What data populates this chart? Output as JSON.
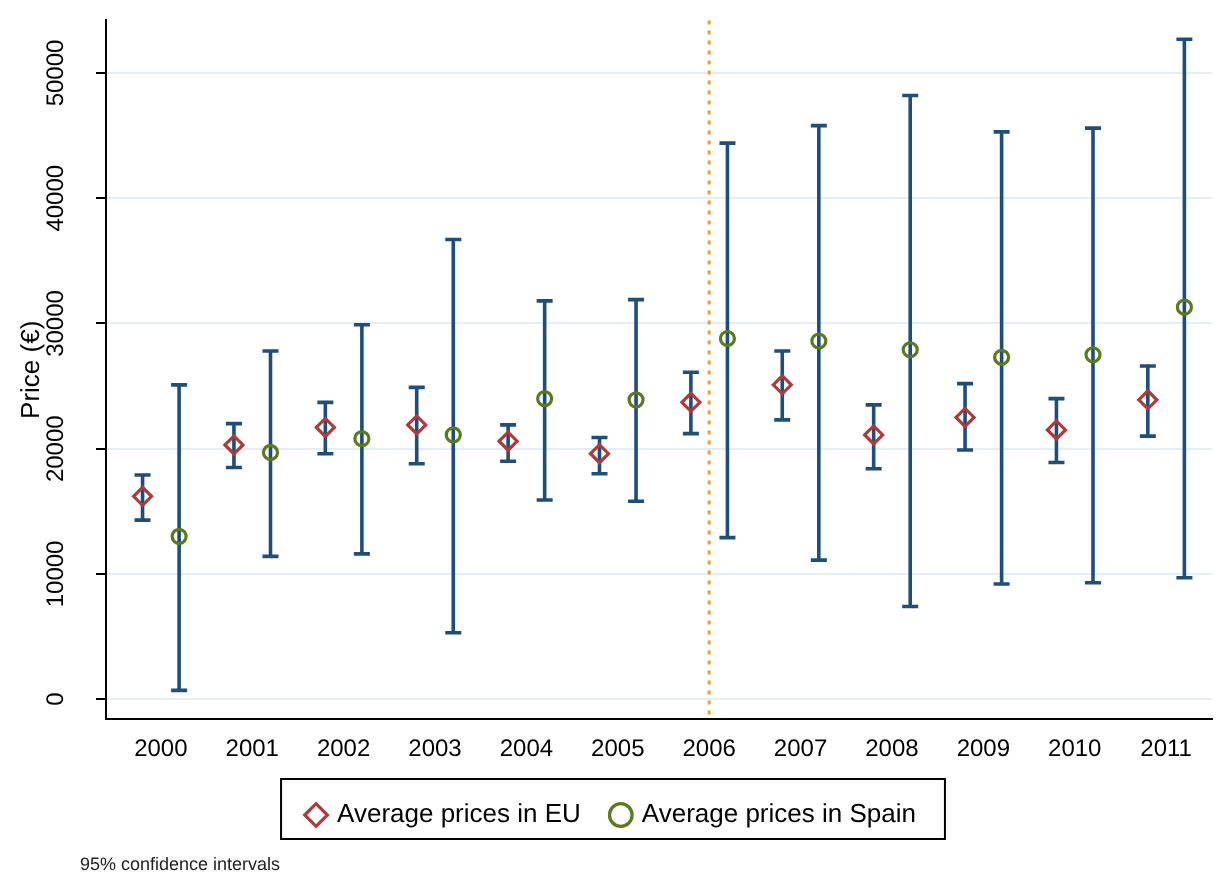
{
  "chart_data": {
    "type": "scatter",
    "ylabel": "Price (€)",
    "xlim": [
      1999.4,
      2011.5
    ],
    "xticks": [
      2000,
      2001,
      2002,
      2003,
      2004,
      2005,
      2006,
      2007,
      2008,
      2009,
      2010,
      2011
    ],
    "ylim": [
      -1600,
      54200
    ],
    "yticks": [
      0,
      10000,
      20000,
      30000,
      40000,
      50000
    ],
    "grid": "y",
    "legend": "bottom",
    "series": [
      {
        "name": "Average prices in EU",
        "color": "#b03a3a",
        "marker": "diamond",
        "x": [
          1999.8,
          2000.8,
          2001.8,
          2002.8,
          2003.8,
          2004.8,
          2005.8,
          2006.8,
          2007.8,
          2008.8,
          2009.8,
          2010.8
        ],
        "values": [
          16200,
          20300,
          21700,
          21900,
          20600,
          19600,
          23700,
          25100,
          21100,
          22500,
          21500,
          23900
        ],
        "errors": [
          [
            14300,
            17900
          ],
          [
            18500,
            22000
          ],
          [
            19600,
            23700
          ],
          [
            18800,
            24900
          ],
          [
            19000,
            21900
          ],
          [
            18000,
            20900
          ],
          [
            21200,
            26100
          ],
          [
            22300,
            27800
          ],
          [
            18400,
            23500
          ],
          [
            19900,
            25200
          ],
          [
            18900,
            24000
          ],
          [
            21000,
            26600
          ]
        ]
      },
      {
        "name": "Average prices in Spain",
        "color": "#5a7a1e",
        "marker": "circle",
        "x": [
          2000.2,
          2001.2,
          2002.2,
          2003.2,
          2004.2,
          2005.2,
          2006.2,
          2007.2,
          2008.2,
          2009.2,
          2010.2,
          2011.2
        ],
        "values": [
          13000,
          19700,
          20800,
          21100,
          24000,
          23900,
          28800,
          28600,
          27900,
          27300,
          27500,
          31300
        ],
        "errors": [
          [
            700,
            25100
          ],
          [
            11400,
            27800
          ],
          [
            11600,
            29900
          ],
          [
            5300,
            36700
          ],
          [
            15900,
            31800
          ],
          [
            15800,
            31900
          ],
          [
            12900,
            44400
          ],
          [
            11100,
            45800
          ],
          [
            7400,
            48200
          ],
          [
            9200,
            45300
          ],
          [
            9300,
            45600
          ],
          [
            9700,
            52700
          ]
        ]
      }
    ],
    "ref_lines": [
      {
        "axis": "x",
        "value": 2006,
        "color": "#f39a3a",
        "line_style": "dotted"
      }
    ],
    "annotations": [
      "95% confidence intervals"
    ]
  }
}
